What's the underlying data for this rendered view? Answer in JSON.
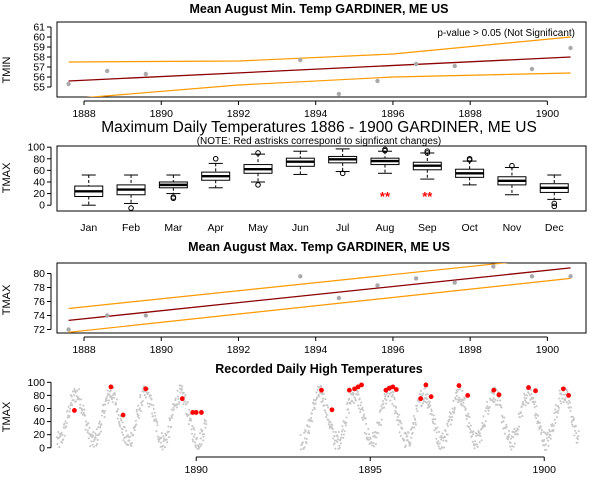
{
  "chart_data": [
    {
      "type": "scatter",
      "title": "Mean August Min. Temp GARDINER, ME US",
      "annotation": "p-value > 0.05 (Not Significant)",
      "xlabel": "",
      "ylabel": "TMIN",
      "xlim": [
        1887.3,
        1901.0
      ],
      "ylim": [
        54.0,
        61.5
      ],
      "xticks": [
        1888,
        1890,
        1892,
        1894,
        1896,
        1898,
        1900
      ],
      "yticks": [
        55,
        56,
        57,
        58,
        59,
        60,
        61
      ],
      "points": [
        {
          "x": 1887.6,
          "y": 55.3
        },
        {
          "x": 1888.6,
          "y": 56.6
        },
        {
          "x": 1889.6,
          "y": 56.3
        },
        {
          "x": 1893.6,
          "y": 57.7
        },
        {
          "x": 1894.6,
          "y": 54.3
        },
        {
          "x": 1895.6,
          "y": 55.6
        },
        {
          "x": 1896.6,
          "y": 57.3
        },
        {
          "x": 1897.6,
          "y": 57.1
        },
        {
          "x": 1899.6,
          "y": 56.8
        },
        {
          "x": 1900.6,
          "y": 58.9
        }
      ],
      "fit": [
        {
          "x": 1887.6,
          "y": 55.6
        },
        {
          "x": 1900.6,
          "y": 58.0
        }
      ],
      "band_upper": [
        {
          "x": 1887.6,
          "y": 57.5
        },
        {
          "x": 1892.0,
          "y": 57.6
        },
        {
          "x": 1896.0,
          "y": 58.3
        },
        {
          "x": 1900.6,
          "y": 60.0
        }
      ],
      "band_lower": [
        {
          "x": 1887.6,
          "y": 53.8
        },
        {
          "x": 1892.0,
          "y": 55.2
        },
        {
          "x": 1896.0,
          "y": 56.0
        },
        {
          "x": 1900.6,
          "y": 56.4
        }
      ],
      "colors": {
        "points": "#a9a9a9",
        "fit": "#8b0000",
        "band": "#ff9900"
      }
    },
    {
      "type": "box",
      "title": "Maximum Daily Temperatures 1886 - 1900 GARDINER, ME US",
      "subtitle": "(NOTE: Red astrisks correspond to signficant changes)",
      "xlabel": "",
      "ylabel": "TMAX",
      "ylim": [
        -10,
        102
      ],
      "yticks": [
        0,
        20,
        40,
        60,
        80,
        100
      ],
      "categories": [
        "Jan",
        "Feb",
        "Mar",
        "Apr",
        "May",
        "Jun",
        "Jul",
        "Aug",
        "Sep",
        "Oct",
        "Nov",
        "Dec"
      ],
      "boxes": [
        {
          "min": 0,
          "q1": 15,
          "median": 24,
          "q3": 33,
          "max": 52,
          "outliers": []
        },
        {
          "min": 3,
          "q1": 18,
          "median": 27,
          "q3": 35,
          "max": 52,
          "outliers": [
            -5
          ]
        },
        {
          "min": 20,
          "q1": 30,
          "median": 35,
          "q3": 40,
          "max": 52,
          "outliers": [
            14,
            12
          ]
        },
        {
          "min": 30,
          "q1": 43,
          "median": 50,
          "q3": 57,
          "max": 72,
          "outliers": [
            80
          ]
        },
        {
          "min": 40,
          "q1": 55,
          "median": 62,
          "q3": 70,
          "max": 88,
          "outliers": [
            35,
            90
          ]
        },
        {
          "min": 53,
          "q1": 67,
          "median": 75,
          "q3": 81,
          "max": 93,
          "outliers": []
        },
        {
          "min": 58,
          "q1": 73,
          "median": 79,
          "q3": 84,
          "max": 97,
          "outliers": [
            55
          ]
        },
        {
          "min": 55,
          "q1": 70,
          "median": 76,
          "q3": 81,
          "max": 93,
          "outliers": [
            96,
            94
          ]
        },
        {
          "min": 45,
          "q1": 61,
          "median": 68,
          "q3": 74,
          "max": 90,
          "outliers": [
            93,
            90
          ]
        },
        {
          "min": 35,
          "q1": 48,
          "median": 55,
          "q3": 62,
          "max": 76,
          "outliers": [
            80,
            78
          ]
        },
        {
          "min": 18,
          "q1": 35,
          "median": 42,
          "q3": 49,
          "max": 65,
          "outliers": [
            68
          ]
        },
        {
          "min": 10,
          "q1": 22,
          "median": 30,
          "q3": 37,
          "max": 52,
          "outliers": [
            3,
            -2
          ]
        }
      ],
      "significant": [
        "Aug",
        "Sep"
      ],
      "significant_marker": "**",
      "colors": {
        "box": "#000000",
        "significant": "#ff0000"
      }
    },
    {
      "type": "scatter",
      "title": "Mean August Max. Temp GARDINER, ME US",
      "xlabel": "",
      "ylabel": "TMAX",
      "xlim": [
        1887.3,
        1901.0
      ],
      "ylim": [
        71.5,
        81.5
      ],
      "xticks": [
        1888,
        1890,
        1892,
        1894,
        1896,
        1898,
        1900
      ],
      "yticks": [
        72,
        74,
        76,
        78,
        80
      ],
      "points": [
        {
          "x": 1887.6,
          "y": 72.0
        },
        {
          "x": 1888.6,
          "y": 74.0
        },
        {
          "x": 1889.6,
          "y": 74.0
        },
        {
          "x": 1893.6,
          "y": 79.6
        },
        {
          "x": 1894.6,
          "y": 76.5
        },
        {
          "x": 1895.6,
          "y": 78.3
        },
        {
          "x": 1896.6,
          "y": 79.3
        },
        {
          "x": 1897.6,
          "y": 78.7
        },
        {
          "x": 1898.6,
          "y": 81.0
        },
        {
          "x": 1899.6,
          "y": 79.6
        },
        {
          "x": 1900.6,
          "y": 79.6
        }
      ],
      "fit": [
        {
          "x": 1887.6,
          "y": 73.3
        },
        {
          "x": 1900.6,
          "y": 80.8
        }
      ],
      "band_upper": [
        {
          "x": 1887.6,
          "y": 75.0
        },
        {
          "x": 1900.6,
          "y": 82.5
        }
      ],
      "band_lower": [
        {
          "x": 1887.6,
          "y": 71.6
        },
        {
          "x": 1900.6,
          "y": 79.3
        }
      ],
      "colors": {
        "points": "#a9a9a9",
        "fit": "#8b0000",
        "band": "#ff9900"
      }
    },
    {
      "type": "scatter",
      "title": "Recorded Daily High Temperatures",
      "xlabel": "",
      "ylabel": "TMAX",
      "xlim": [
        1886.0,
        1901.2
      ],
      "ylim": [
        -8,
        102
      ],
      "xticks": [
        1890,
        1895,
        1900
      ],
      "yticks": [
        0,
        20,
        40,
        60,
        80,
        100
      ],
      "segments": [
        [
          1886.0,
          1890.3
        ],
        [
          1893.0,
          1901.0
        ]
      ],
      "seasonal": {
        "mean": 46,
        "amplitude": 36,
        "noise": 14,
        "peak_phase": 0.55
      },
      "records": [
        {
          "x": 1886.5,
          "y": 57
        },
        {
          "x": 1887.55,
          "y": 93
        },
        {
          "x": 1887.9,
          "y": 50
        },
        {
          "x": 1888.55,
          "y": 90
        },
        {
          "x": 1889.6,
          "y": 75
        },
        {
          "x": 1889.9,
          "y": 54
        },
        {
          "x": 1890.0,
          "y": 54
        },
        {
          "x": 1890.15,
          "y": 54
        },
        {
          "x": 1893.6,
          "y": 88
        },
        {
          "x": 1893.9,
          "y": 58
        },
        {
          "x": 1894.4,
          "y": 88
        },
        {
          "x": 1894.55,
          "y": 90
        },
        {
          "x": 1894.65,
          "y": 93
        },
        {
          "x": 1894.75,
          "y": 96
        },
        {
          "x": 1895.45,
          "y": 88
        },
        {
          "x": 1895.55,
          "y": 91
        },
        {
          "x": 1895.65,
          "y": 93
        },
        {
          "x": 1895.75,
          "y": 89
        },
        {
          "x": 1896.6,
          "y": 96
        },
        {
          "x": 1896.75,
          "y": 78
        },
        {
          "x": 1896.45,
          "y": 75
        },
        {
          "x": 1897.55,
          "y": 95
        },
        {
          "x": 1897.8,
          "y": 80
        },
        {
          "x": 1898.55,
          "y": 88
        },
        {
          "x": 1898.7,
          "y": 81
        },
        {
          "x": 1899.55,
          "y": 92
        },
        {
          "x": 1899.75,
          "y": 87
        },
        {
          "x": 1900.55,
          "y": 90
        },
        {
          "x": 1900.7,
          "y": 80
        }
      ],
      "colors": {
        "points": "#c8c8c8",
        "records": "#ff0000"
      }
    }
  ]
}
